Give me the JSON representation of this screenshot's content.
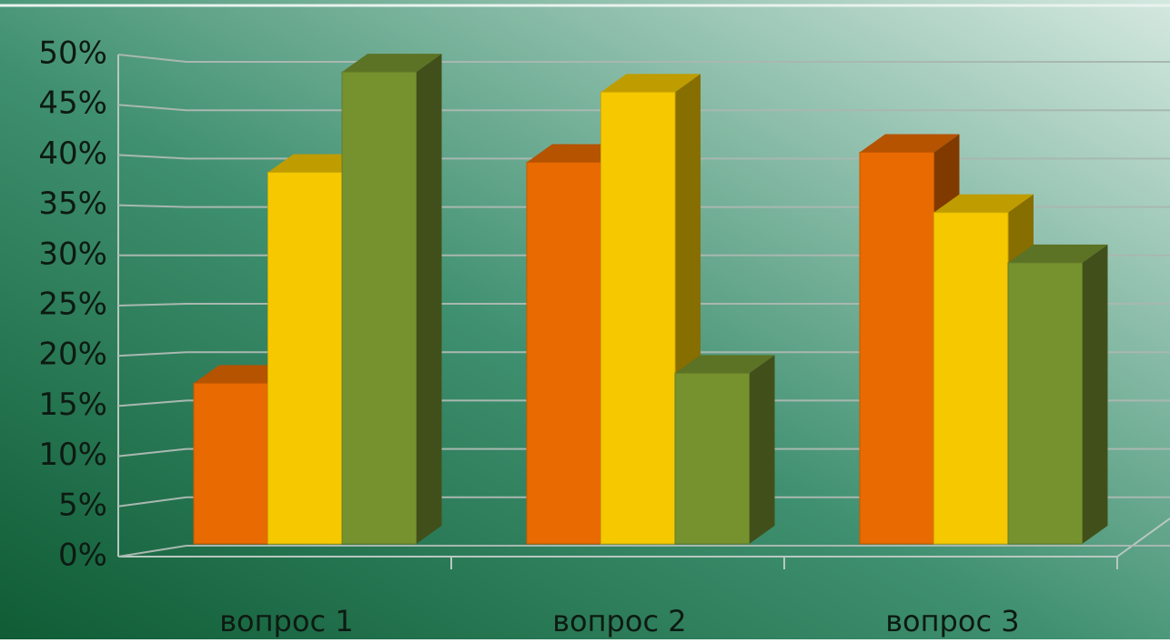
{
  "chart_data": {
    "type": "bar3d",
    "categories": [
      "вопрос 1",
      "вопрос 2",
      "вопрос 3"
    ],
    "series": [
      {
        "color": "#e86a00",
        "values": [
          16,
          38,
          39
        ]
      },
      {
        "color": "#f5c800",
        "values": [
          37,
          45,
          33
        ]
      },
      {
        "color": "#76922f",
        "values": [
          47,
          17,
          28
        ]
      }
    ],
    "ylim": [
      0,
      50
    ],
    "yticks": [
      {
        "value": 0,
        "label": "0%"
      },
      {
        "value": 5,
        "label": "5%"
      },
      {
        "value": 10,
        "label": "10%"
      },
      {
        "value": 15,
        "label": "15%"
      },
      {
        "value": 20,
        "label": "20%"
      },
      {
        "value": 25,
        "label": "25%"
      },
      {
        "value": 30,
        "label": "30%"
      },
      {
        "value": 35,
        "label": "35%"
      },
      {
        "value": 40,
        "label": "40%"
      },
      {
        "value": 45,
        "label": "45%"
      },
      {
        "value": 50,
        "label": "50%"
      }
    ],
    "grid": true
  }
}
